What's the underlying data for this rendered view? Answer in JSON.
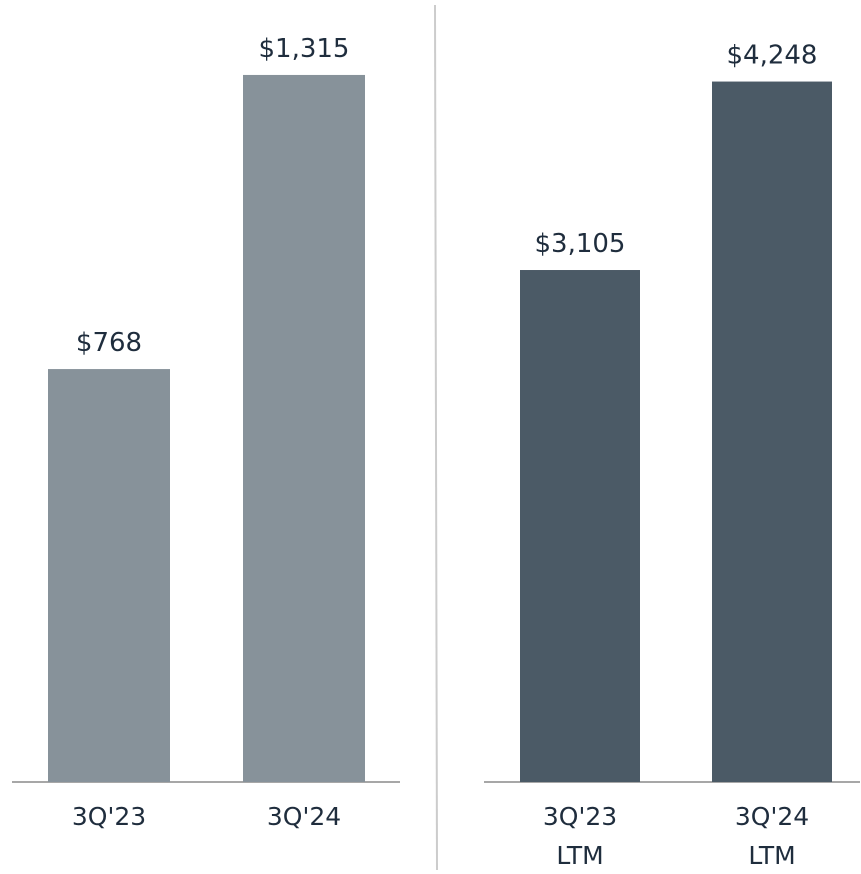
{
  "chart_data": [
    {
      "type": "bar",
      "categories": [
        [
          "3Q'23"
        ],
        [
          "3Q'24"
        ]
      ],
      "values": [
        768,
        1315
      ],
      "value_labels": [
        "$768",
        "$1,315"
      ],
      "color": "#87929a",
      "ylim": [
        0,
        1380
      ]
    },
    {
      "type": "bar",
      "categories": [
        [
          "3Q'23",
          "LTM"
        ],
        [
          "3Q'24",
          "LTM"
        ]
      ],
      "values": [
        3105,
        4248
      ],
      "value_labels": [
        "$3,105",
        "$4,248"
      ],
      "color": "#4b5a66",
      "ylim": [
        0,
        4500
      ]
    }
  ]
}
